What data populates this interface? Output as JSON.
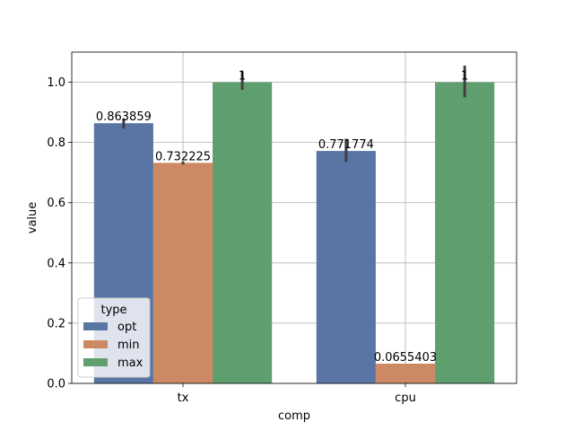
{
  "chart_data": {
    "type": "bar",
    "xlabel": "comp",
    "ylabel": "value",
    "categories": [
      "tx",
      "cpu"
    ],
    "ylim": [
      0,
      1.1
    ],
    "yticks": [
      "0.0",
      "0.2",
      "0.4",
      "0.6",
      "0.8",
      "1.0"
    ],
    "grid": true,
    "legend": {
      "title": "type",
      "placement": "lower-left"
    },
    "series": [
      {
        "name": "opt",
        "color": "#5975a4",
        "values": [
          0.863859,
          0.771774
        ],
        "labels": [
          "0.863859",
          "0.771774"
        ],
        "err": [
          [
            0.846,
            0.88
          ],
          [
            0.735,
            0.812
          ]
        ]
      },
      {
        "name": "min",
        "color": "#cc8963",
        "values": [
          0.732225,
          0.0655403
        ],
        "labels": [
          "0.732225",
          "0.0655403"
        ],
        "err": [
          [
            0.727,
            0.737
          ],
          [
            0.0655403,
            0.0655403
          ]
        ]
      },
      {
        "name": "max",
        "color": "#5f9e6e",
        "values": [
          1,
          1
        ],
        "labels": [
          "1",
          "1"
        ],
        "err": [
          [
            0.975,
            1.035
          ],
          [
            0.95,
            1.055
          ]
        ]
      }
    ]
  }
}
